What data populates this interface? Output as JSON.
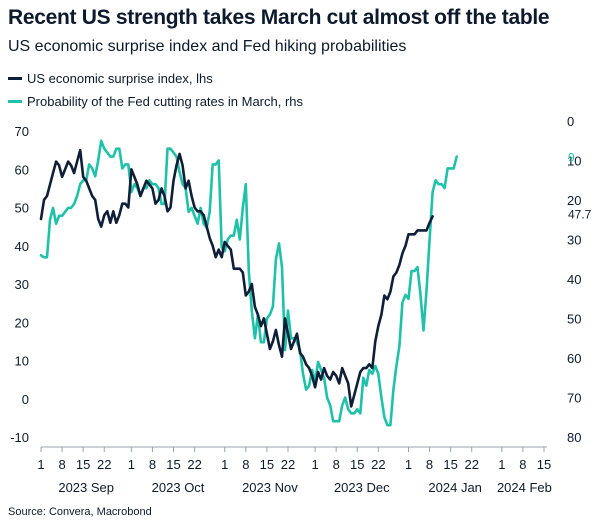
{
  "title": "Recent US strength takes March cut almost off the table",
  "subtitle": "US economic surprise index and Fed hiking probabilities",
  "source": "Source: Convera, Macrobond",
  "colors": {
    "surprise": "#0f1f3a",
    "probability": "#1fc1a8",
    "text": "#0d1a2e"
  },
  "chart_data": {
    "type": "line",
    "title": "Recent US strength takes March cut almost off the table",
    "subtitle": "US economic surprise index and Fed hiking probabilities",
    "x_day_range": [
      0,
      166
    ],
    "x_tick_labels": [
      {
        "day": 0,
        "label": "1"
      },
      {
        "day": 7,
        "label": "8"
      },
      {
        "day": 14,
        "label": "15"
      },
      {
        "day": 21,
        "label": "22"
      },
      {
        "day": 30,
        "label": "1"
      },
      {
        "day": 37,
        "label": "8"
      },
      {
        "day": 44,
        "label": "15"
      },
      {
        "day": 51,
        "label": "22"
      },
      {
        "day": 61,
        "label": "1"
      },
      {
        "day": 68,
        "label": "8"
      },
      {
        "day": 75,
        "label": "15"
      },
      {
        "day": 82,
        "label": "22"
      },
      {
        "day": 91,
        "label": "1"
      },
      {
        "day": 98,
        "label": "8"
      },
      {
        "day": 105,
        "label": "15"
      },
      {
        "day": 112,
        "label": "22"
      },
      {
        "day": 122,
        "label": "1"
      },
      {
        "day": 129,
        "label": "8"
      },
      {
        "day": 136,
        "label": "15"
      },
      {
        "day": 143,
        "label": "22"
      },
      {
        "day": 153,
        "label": "1"
      },
      {
        "day": 160,
        "label": "8"
      },
      {
        "day": 167,
        "label": "15"
      }
    ],
    "x_month_labels": [
      {
        "day": 15,
        "label": "2023 Sep"
      },
      {
        "day": 45.5,
        "label": "2023 Oct"
      },
      {
        "day": 76,
        "label": "2023 Nov"
      },
      {
        "day": 106.5,
        "label": "2023 Dec"
      },
      {
        "day": 137.5,
        "label": "2024 Jan"
      },
      {
        "day": 160.5,
        "label": "2024 Feb"
      }
    ],
    "y_left": {
      "min": -10,
      "max": 70,
      "ticks": [
        "70",
        "60",
        "50",
        "40",
        "30",
        "20",
        "10",
        "0",
        "-10"
      ]
    },
    "y_right": {
      "min": 0,
      "max": 80,
      "inverted": true,
      "ticks": [
        "0",
        "10",
        "20",
        "30",
        "40",
        "50",
        "60",
        "70",
        "80"
      ]
    },
    "series": [
      {
        "name": "US economic surprise index, lhs",
        "axis": "left",
        "end_label": "47.7",
        "points": [
          [
            0,
            47
          ],
          [
            1,
            52
          ],
          [
            2,
            53
          ],
          [
            3,
            56
          ],
          [
            4,
            59
          ],
          [
            5,
            62
          ],
          [
            6,
            61
          ],
          [
            7,
            58
          ],
          [
            8,
            60
          ],
          [
            9,
            62
          ],
          [
            10,
            61
          ],
          [
            11,
            59
          ],
          [
            12,
            62
          ],
          [
            13,
            65
          ],
          [
            14,
            58
          ],
          [
            15,
            57
          ],
          [
            16,
            55
          ],
          [
            17,
            53
          ],
          [
            18,
            52
          ],
          [
            19,
            47
          ],
          [
            20,
            45
          ],
          [
            21,
            48
          ],
          [
            22,
            49
          ],
          [
            23,
            46
          ],
          [
            24,
            49
          ],
          [
            25,
            46
          ],
          [
            26,
            48
          ],
          [
            27,
            51
          ],
          [
            28,
            51
          ],
          [
            29,
            50
          ],
          [
            30,
            60
          ],
          [
            31,
            58
          ],
          [
            32,
            56
          ],
          [
            33,
            53
          ],
          [
            34,
            55
          ],
          [
            35,
            57
          ],
          [
            36,
            56
          ],
          [
            37,
            55
          ],
          [
            38,
            51
          ],
          [
            39,
            52
          ],
          [
            40,
            55
          ],
          [
            41,
            53
          ],
          [
            42,
            49
          ],
          [
            43,
            50
          ],
          [
            44,
            57
          ],
          [
            45,
            61
          ],
          [
            46,
            64
          ],
          [
            47,
            61
          ],
          [
            48,
            55
          ],
          [
            49,
            57
          ],
          [
            50,
            53
          ],
          [
            51,
            50
          ],
          [
            52,
            49
          ],
          [
            53,
            49
          ],
          [
            54,
            48
          ],
          [
            55,
            45
          ],
          [
            56,
            42
          ],
          [
            57,
            40
          ],
          [
            58,
            37
          ],
          [
            59,
            39
          ],
          [
            60,
            37
          ],
          [
            61,
            41
          ],
          [
            62,
            40
          ],
          [
            63,
            39
          ],
          [
            64,
            34
          ],
          [
            65,
            34
          ],
          [
            66,
            34
          ],
          [
            67,
            33
          ],
          [
            68,
            27
          ],
          [
            69,
            28
          ],
          [
            70,
            30
          ],
          [
            71,
            24
          ],
          [
            72,
            22
          ],
          [
            73,
            19
          ],
          [
            74,
            21
          ],
          [
            75,
            17
          ],
          [
            76,
            13
          ],
          [
            77,
            15
          ],
          [
            78,
            18
          ],
          [
            79,
            14
          ],
          [
            80,
            11
          ],
          [
            81,
            21
          ],
          [
            82,
            17
          ],
          [
            83,
            13
          ],
          [
            84,
            15
          ],
          [
            85,
            17
          ],
          [
            86,
            12
          ],
          [
            87,
            11
          ],
          [
            88,
            9
          ],
          [
            89,
            8
          ],
          [
            90,
            6
          ],
          [
            91,
            3
          ],
          [
            92,
            7
          ],
          [
            93,
            5
          ],
          [
            94,
            8
          ],
          [
            95,
            6
          ],
          [
            96,
            5
          ],
          [
            97,
            7
          ],
          [
            98,
            6
          ],
          [
            99,
            4
          ],
          [
            100,
            8
          ],
          [
            101,
            6
          ],
          [
            102,
            4
          ],
          [
            103,
            -2
          ],
          [
            104,
            1
          ],
          [
            105,
            4
          ],
          [
            106,
            7
          ],
          [
            107,
            8
          ],
          [
            108,
            8
          ],
          [
            109,
            9
          ],
          [
            110,
            8
          ],
          [
            111,
            15
          ],
          [
            112,
            19
          ],
          [
            113,
            22
          ],
          [
            114,
            27
          ],
          [
            115,
            26
          ],
          [
            116,
            28
          ],
          [
            117,
            32
          ],
          [
            118,
            33
          ],
          [
            119,
            35
          ],
          [
            120,
            38
          ],
          [
            121,
            40
          ],
          [
            122,
            43
          ],
          [
            123,
            43
          ],
          [
            124,
            43
          ],
          [
            125,
            44
          ],
          [
            126,
            44
          ],
          [
            127,
            44
          ],
          [
            128,
            44
          ],
          [
            129,
            46
          ],
          [
            130,
            47.7
          ]
        ]
      },
      {
        "name": "Probability of the Fed cutting rates in March, rhs",
        "axis": "right",
        "end_label": "9",
        "points": [
          [
            0,
            34
          ],
          [
            1,
            34.5
          ],
          [
            2,
            34.5
          ],
          [
            3,
            25
          ],
          [
            4,
            22
          ],
          [
            5,
            26
          ],
          [
            6,
            24
          ],
          [
            7,
            24
          ],
          [
            8,
            23
          ],
          [
            9,
            22
          ],
          [
            10,
            22
          ],
          [
            11,
            21
          ],
          [
            12,
            19
          ],
          [
            13,
            16
          ],
          [
            14,
            15
          ],
          [
            15,
            15
          ],
          [
            16,
            11
          ],
          [
            17,
            12
          ],
          [
            18,
            14
          ],
          [
            19,
            10
          ],
          [
            20,
            5
          ],
          [
            21,
            7
          ],
          [
            22,
            8
          ],
          [
            23,
            9
          ],
          [
            24,
            9
          ],
          [
            25,
            7
          ],
          [
            26,
            7
          ],
          [
            27,
            12
          ],
          [
            28,
            11
          ],
          [
            29,
            11
          ],
          [
            30,
            18
          ],
          [
            31,
            16
          ],
          [
            32,
            17
          ],
          [
            33,
            19
          ],
          [
            34,
            17
          ],
          [
            35,
            17
          ],
          [
            36,
            15
          ],
          [
            37,
            16
          ],
          [
            38,
            16
          ],
          [
            39,
            17
          ],
          [
            40,
            21
          ],
          [
            41,
            21
          ],
          [
            42,
            7
          ],
          [
            43,
            7
          ],
          [
            44,
            8
          ],
          [
            45,
            9
          ],
          [
            46,
            13
          ],
          [
            47,
            16
          ],
          [
            48,
            17
          ],
          [
            49,
            23
          ],
          [
            50,
            22
          ],
          [
            51,
            24
          ],
          [
            52,
            26
          ],
          [
            53,
            22
          ],
          [
            54,
            26
          ],
          [
            55,
            27
          ],
          [
            56,
            23
          ],
          [
            57,
            11
          ],
          [
            58,
            11
          ],
          [
            59,
            10
          ],
          [
            60,
            32
          ],
          [
            61,
            33
          ],
          [
            62,
            30
          ],
          [
            63,
            29
          ],
          [
            64,
            29
          ],
          [
            65,
            25
          ],
          [
            66,
            30
          ],
          [
            67,
            22
          ],
          [
            68,
            16
          ],
          [
            69,
            38
          ],
          [
            70,
            48
          ],
          [
            71,
            55
          ],
          [
            72,
            49
          ],
          [
            73,
            56
          ],
          [
            74,
            56
          ],
          [
            75,
            50
          ],
          [
            76,
            49
          ],
          [
            77,
            47
          ],
          [
            78,
            35
          ],
          [
            79,
            31
          ],
          [
            80,
            37
          ],
          [
            81,
            58
          ],
          [
            82,
            48
          ],
          [
            83,
            55
          ],
          [
            84,
            55
          ],
          [
            85,
            56
          ],
          [
            86,
            58
          ],
          [
            87,
            64
          ],
          [
            88,
            68
          ],
          [
            89,
            67
          ],
          [
            90,
            63
          ],
          [
            91,
            66
          ],
          [
            92,
            61
          ],
          [
            93,
            63
          ],
          [
            94,
            65
          ],
          [
            95,
            70
          ],
          [
            96,
            72
          ],
          [
            97,
            76
          ],
          [
            98,
            76
          ],
          [
            99,
            76
          ],
          [
            100,
            72
          ],
          [
            101,
            70
          ],
          [
            102,
            73
          ],
          [
            103,
            74
          ],
          [
            104,
            74
          ],
          [
            105,
            73
          ],
          [
            106,
            74
          ],
          [
            107,
            65
          ],
          [
            108,
            67
          ],
          [
            109,
            63
          ],
          [
            110,
            64
          ],
          [
            111,
            62
          ],
          [
            112,
            64
          ],
          [
            113,
            70
          ],
          [
            114,
            75
          ],
          [
            115,
            77
          ],
          [
            116,
            77
          ],
          [
            117,
            68
          ],
          [
            118,
            62
          ],
          [
            119,
            57
          ],
          [
            120,
            46
          ],
          [
            121,
            44
          ],
          [
            122,
            45
          ],
          [
            123,
            38
          ],
          [
            124,
            38
          ],
          [
            125,
            37
          ],
          [
            126,
            44
          ],
          [
            127,
            53
          ],
          [
            128,
            43
          ],
          [
            129,
            30
          ],
          [
            130,
            18
          ],
          [
            131,
            15
          ],
          [
            132,
            16
          ],
          [
            133,
            16
          ],
          [
            134,
            17
          ],
          [
            135,
            12
          ],
          [
            136,
            12
          ],
          [
            137,
            12
          ],
          [
            138,
            9
          ]
        ]
      }
    ]
  }
}
